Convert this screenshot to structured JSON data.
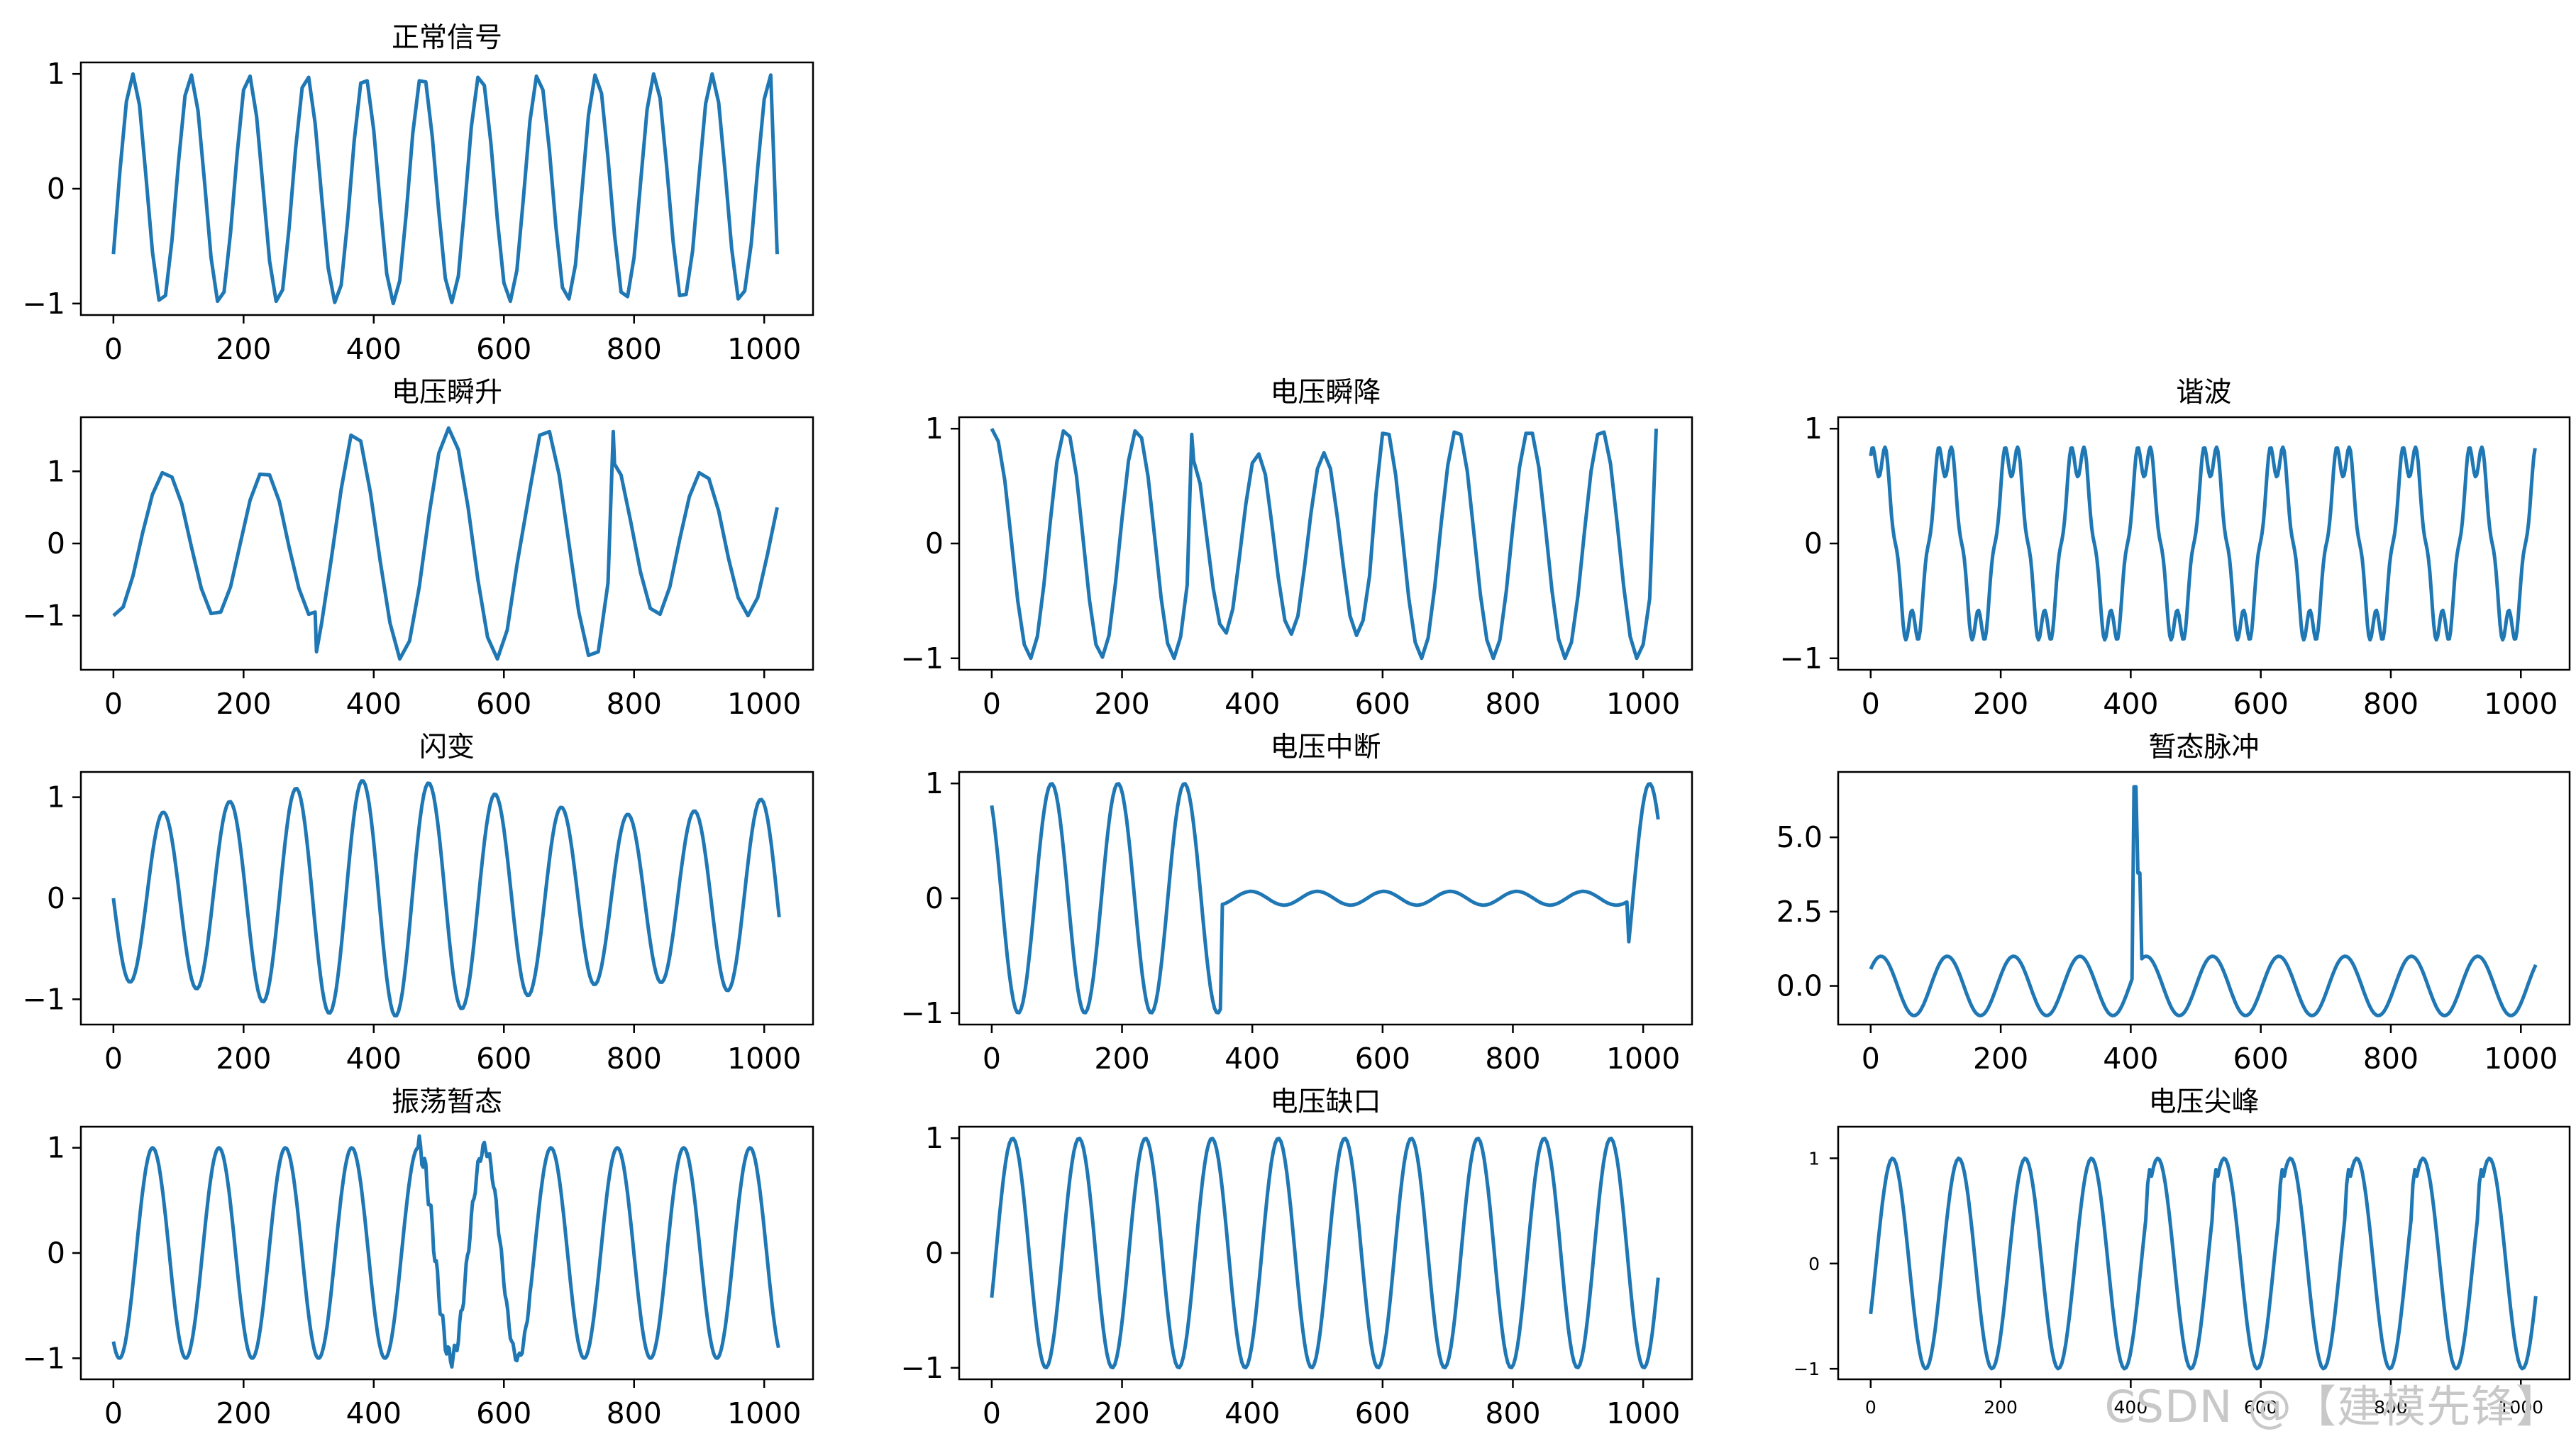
{
  "figure": {
    "line_color": "#1f77b4",
    "watermark": "CSDN @【建模先锋】"
  },
  "chart_data": [
    {
      "type": "line",
      "title": "正常信号",
      "grid": false,
      "xlim": [
        -50,
        1075
      ],
      "xticks": [
        0,
        200,
        400,
        600,
        800,
        1000
      ],
      "ylim": [
        -1.1,
        1.1
      ],
      "yticks": [
        -1,
        0,
        1
      ],
      "ytick_labels": [
        "−1",
        "0",
        "1"
      ],
      "series": [
        {
          "x": [
            0,
            10,
            20,
            30,
            40,
            50,
            60,
            70,
            80,
            90,
            100,
            110,
            120,
            130,
            140,
            150,
            160,
            170,
            180,
            190,
            200,
            210,
            220,
            230,
            240,
            250,
            260,
            270,
            280,
            290,
            300,
            310,
            320,
            330,
            340,
            350,
            360,
            370,
            380,
            390,
            400,
            410,
            420,
            430,
            440,
            450,
            460,
            470,
            480,
            490,
            500,
            510,
            520,
            530,
            540,
            550,
            560,
            570,
            580,
            590,
            600,
            610,
            620,
            630,
            640,
            650,
            660,
            670,
            680,
            690,
            700,
            710,
            720,
            730,
            740,
            750,
            760,
            770,
            780,
            790,
            800,
            810,
            820,
            830,
            840,
            850,
            860,
            870,
            880,
            890,
            900,
            910,
            920,
            930,
            940,
            950,
            960,
            970,
            980,
            990,
            1000,
            1010,
            1020
          ],
          "y": [
            -0.57,
            0.15,
            0.76,
            1.0,
            0.73,
            0.11,
            -0.55,
            -0.97,
            -0.93,
            -0.45,
            0.23,
            0.81,
            0.99,
            0.68,
            0.06,
            -0.6,
            -0.98,
            -0.9,
            -0.38,
            0.3,
            0.86,
            0.98,
            0.63,
            0.0,
            -0.63,
            -0.98,
            -0.88,
            -0.34,
            0.35,
            0.88,
            0.97,
            0.57,
            -0.07,
            -0.69,
            -0.99,
            -0.84,
            -0.27,
            0.42,
            0.92,
            0.94,
            0.51,
            -0.14,
            -0.74,
            -1.0,
            -0.8,
            -0.21,
            0.48,
            0.94,
            0.93,
            0.45,
            -0.2,
            -0.78,
            -0.99,
            -0.76,
            -0.14,
            0.54,
            0.97,
            0.9,
            0.4,
            -0.27,
            -0.82,
            -0.98,
            -0.71,
            -0.08,
            0.59,
            0.98,
            0.86,
            0.33,
            -0.34,
            -0.86,
            -0.96,
            -0.66,
            -0.02,
            0.64,
            0.99,
            0.83,
            0.27,
            -0.4,
            -0.9,
            -0.94,
            -0.6,
            0.05,
            0.69,
            1.0,
            0.79,
            0.2,
            -0.46,
            -0.93,
            -0.92,
            -0.54,
            0.12,
            0.74,
            1.0,
            0.75,
            0.14,
            -0.52,
            -0.96,
            -0.89,
            -0.48,
            0.18,
            0.78,
            0.99,
            -0.57
          ]
        }
      ]
    },
    {
      "type": "line",
      "title": "电压瞬升",
      "grid": false,
      "xlim": [
        -50,
        1075
      ],
      "xticks": [
        0,
        200,
        400,
        600,
        800,
        1000
      ],
      "ylim": [
        -1.75,
        1.75
      ],
      "yticks": [
        -1,
        0,
        1
      ],
      "ytick_labels": [
        "−1",
        "0",
        "1"
      ],
      "series": [
        {
          "x": [
            0,
            15,
            30,
            45,
            60,
            75,
            90,
            105,
            120,
            135,
            150,
            165,
            180,
            195,
            210,
            225,
            240,
            255,
            270,
            285,
            300,
            310,
            312,
            320,
            335,
            350,
            365,
            380,
            395,
            410,
            425,
            440,
            455,
            470,
            485,
            500,
            515,
            530,
            545,
            560,
            575,
            590,
            605,
            620,
            640,
            655,
            670,
            685,
            700,
            715,
            730,
            745,
            760,
            768,
            770,
            780,
            795,
            810,
            825,
            840,
            855,
            870,
            885,
            900,
            915,
            930,
            945,
            960,
            975,
            990,
            1005,
            1020
          ],
          "y": [
            -1.0,
            -0.88,
            -0.45,
            0.15,
            0.68,
            0.98,
            0.92,
            0.55,
            -0.05,
            -0.62,
            -0.97,
            -0.95,
            -0.6,
            0.0,
            0.6,
            0.96,
            0.95,
            0.58,
            -0.05,
            -0.62,
            -0.98,
            -0.95,
            -1.5,
            -1.1,
            -0.2,
            0.75,
            1.5,
            1.42,
            0.7,
            -0.25,
            -1.1,
            -1.6,
            -1.35,
            -0.6,
            0.4,
            1.25,
            1.6,
            1.3,
            0.5,
            -0.5,
            -1.3,
            -1.6,
            -1.2,
            -0.3,
            0.75,
            1.5,
            1.55,
            0.95,
            0.0,
            -0.95,
            -1.55,
            -1.5,
            -0.55,
            1.55,
            1.1,
            0.95,
            0.3,
            -0.4,
            -0.9,
            -0.98,
            -0.6,
            0.05,
            0.65,
            0.98,
            0.9,
            0.45,
            -0.2,
            -0.75,
            -1.0,
            -0.75,
            -0.15,
            0.5
          ],
          "y_override_note": ""
        }
      ]
    },
    {
      "type": "line",
      "title": "电压瞬降",
      "grid": false,
      "xlim": [
        -50,
        1075
      ],
      "xticks": [
        0,
        200,
        400,
        600,
        800,
        1000
      ],
      "ylim": [
        -1.1,
        1.1
      ],
      "yticks": [
        -1,
        0,
        1
      ],
      "ytick_labels": [
        "−1",
        "0",
        "1"
      ],
      "series": [
        {
          "x": [
            0,
            10,
            20,
            30,
            40,
            50,
            60,
            70,
            80,
            90,
            100,
            110,
            120,
            130,
            140,
            150,
            160,
            170,
            180,
            190,
            200,
            210,
            220,
            230,
            240,
            250,
            260,
            270,
            280,
            290,
            300,
            307,
            310,
            320,
            330,
            340,
            350,
            360,
            370,
            380,
            390,
            400,
            410,
            420,
            430,
            440,
            450,
            460,
            470,
            480,
            490,
            500,
            510,
            520,
            530,
            540,
            550,
            560,
            570,
            580,
            590,
            600,
            610,
            620,
            630,
            640,
            650,
            660,
            670,
            680,
            690,
            700,
            710,
            720,
            730,
            740,
            750,
            760,
            770,
            780,
            790,
            800,
            810,
            820,
            830,
            840,
            850,
            860,
            870,
            880,
            890,
            900,
            910,
            920,
            930,
            940,
            950,
            960,
            970,
            980,
            990,
            1000,
            1010,
            1020
          ],
          "y": [
            1.0,
            0.89,
            0.55,
            0.03,
            -0.5,
            -0.88,
            -1.0,
            -0.81,
            -0.36,
            0.2,
            0.71,
            0.98,
            0.93,
            0.59,
            0.05,
            -0.49,
            -0.88,
            -0.99,
            -0.8,
            -0.34,
            0.22,
            0.72,
            0.98,
            0.92,
            0.58,
            0.06,
            -0.47,
            -0.87,
            -1.0,
            -0.81,
            -0.36,
            0.95,
            0.72,
            0.52,
            0.06,
            -0.39,
            -0.7,
            -0.78,
            -0.57,
            -0.13,
            0.34,
            0.7,
            0.78,
            0.6,
            0.17,
            -0.3,
            -0.67,
            -0.79,
            -0.63,
            -0.21,
            0.26,
            0.65,
            0.79,
            0.65,
            0.25,
            -0.21,
            -0.63,
            -0.8,
            -0.67,
            -0.28,
            0.44,
            0.96,
            0.95,
            0.6,
            0.08,
            -0.47,
            -0.86,
            -1.0,
            -0.82,
            -0.38,
            0.18,
            0.68,
            0.97,
            0.95,
            0.63,
            0.1,
            -0.44,
            -0.84,
            -1.0,
            -0.84,
            -0.41,
            0.15,
            0.66,
            0.96,
            0.96,
            0.66,
            0.14,
            -0.41,
            -0.83,
            -1.0,
            -0.86,
            -0.45,
            0.11,
            0.63,
            0.95,
            0.97,
            0.69,
            0.18,
            -0.37,
            -0.81,
            -1.0,
            -0.88,
            -0.48,
            1.0
          ],
          "y_override_note": ""
        }
      ]
    },
    {
      "type": "line",
      "title": "谐波",
      "grid": false,
      "xlim": [
        -50,
        1075
      ],
      "xticks": [
        0,
        200,
        400,
        600,
        800,
        1000
      ],
      "ylim": [
        -1.1,
        1.1
      ],
      "yticks": [
        -1,
        0,
        1
      ],
      "ytick_labels": [
        "−1",
        "0",
        "1"
      ],
      "series": [
        {
          "x": [],
          "y": [],
          "formula_note": ""
        }
      ]
    },
    {
      "type": "line",
      "title": "闪变",
      "grid": false,
      "xlim": [
        -50,
        1075
      ],
      "xticks": [
        0,
        200,
        400,
        600,
        800,
        1000
      ],
      "ylim": [
        -1.25,
        1.25
      ],
      "yticks": [
        -1,
        0,
        1
      ],
      "ytick_labels": [
        "−1",
        "0",
        "1"
      ],
      "series": [
        {
          "x": [],
          "y": []
        }
      ]
    },
    {
      "type": "line",
      "title": "电压中断",
      "grid": false,
      "xlim": [
        -50,
        1075
      ],
      "xticks": [
        0,
        200,
        400,
        600,
        800,
        1000
      ],
      "ylim": [
        -1.1,
        1.1
      ],
      "yticks": [
        -1,
        0,
        1
      ],
      "ytick_labels": [
        "−1",
        "0",
        "1"
      ],
      "series": [
        {
          "x": [],
          "y": []
        }
      ]
    },
    {
      "type": "line",
      "title": "暂态脉冲",
      "grid": false,
      "xlim": [
        -50,
        1075
      ],
      "xticks": [
        0,
        200,
        400,
        600,
        800,
        1000
      ],
      "ylim": [
        -1.3,
        7.2
      ],
      "yticks": [
        0.0,
        2.5,
        5.0
      ],
      "ytick_labels": [
        "0.0",
        "2.5",
        "5.0"
      ],
      "series": [
        {
          "x": [],
          "y": []
        }
      ]
    },
    {
      "type": "line",
      "title": "振荡暂态",
      "grid": false,
      "xlim": [
        -50,
        1075
      ],
      "xticks": [
        0,
        200,
        400,
        600,
        800,
        1000
      ],
      "ylim": [
        -1.2,
        1.2
      ],
      "yticks": [
        -1,
        0,
        1
      ],
      "ytick_labels": [
        "−1",
        "0",
        "1"
      ],
      "series": [
        {
          "x": [],
          "y": []
        }
      ]
    },
    {
      "type": "line",
      "title": "电压缺口",
      "grid": false,
      "xlim": [
        -50,
        1075
      ],
      "xticks": [
        0,
        200,
        400,
        600,
        800,
        1000
      ],
      "ylim": [
        -1.1,
        1.1
      ],
      "yticks": [
        -1,
        0,
        1
      ],
      "ytick_labels": [
        "−1",
        "0",
        "1"
      ],
      "series": [
        {
          "x": [],
          "y": []
        }
      ]
    },
    {
      "type": "line",
      "title": "电压尖峰",
      "grid": false,
      "xlim": [
        -50,
        1075
      ],
      "xticks": [
        0,
        200,
        400,
        600,
        800,
        1000
      ],
      "ylim": [
        -1.1,
        1.3
      ],
      "yticks": [
        -1,
        0,
        1
      ],
      "ytick_labels": [
        "−1",
        "0",
        "1"
      ],
      "small_ticks": true,
      "series": [
        {
          "x": [],
          "y": []
        }
      ]
    }
  ]
}
